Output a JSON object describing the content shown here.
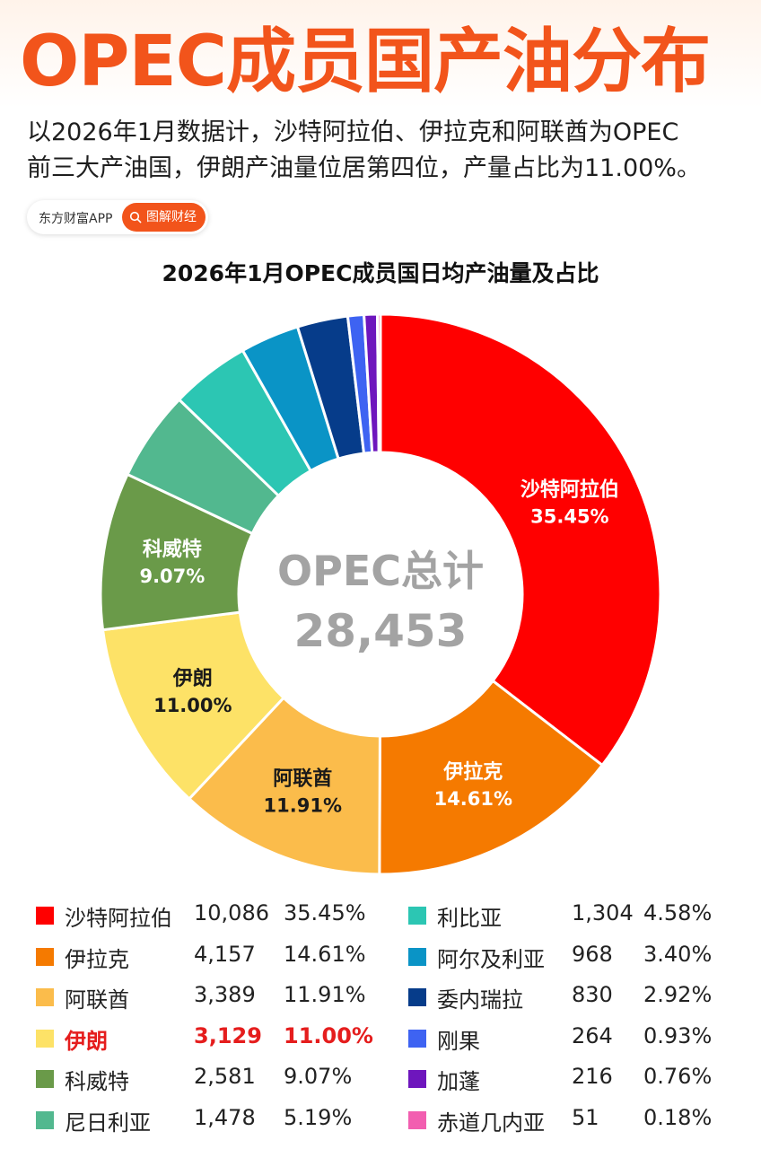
{
  "header": {
    "title": "OPEC成员国产油分布",
    "intro_line1": "以2026年1月数据计，沙特阿拉伯、伊拉克和阿联酋为OPEC",
    "intro_line2": "前三大产油国，伊朗产油量位居第四位，产量占比为11.00%。",
    "source_app": "东方财富APP",
    "source_brand": "图解财经",
    "accent_color": "#f2541b"
  },
  "chart_data": {
    "type": "pie",
    "title": "2026年1月OPEC成员国日均产油量及占比",
    "center_label": "OPEC总计",
    "center_value": "28,453",
    "highlight": "伊朗",
    "slices": [
      {
        "name": "沙特阿拉伯",
        "value": "10,086",
        "percent": "35.45%",
        "pct": 35.45,
        "color": "#ff0000",
        "labeled": true,
        "label_color": "#ffffff"
      },
      {
        "name": "伊拉克",
        "value": "4,157",
        "percent": "14.61%",
        "pct": 14.61,
        "color": "#f57a00",
        "labeled": true,
        "label_color": "#ffffff"
      },
      {
        "name": "阿联酋",
        "value": "3,389",
        "percent": "11.91%",
        "pct": 11.91,
        "color": "#fbbc4b",
        "labeled": true,
        "label_color": "#1a1a1a"
      },
      {
        "name": "伊朗",
        "value": "3,129",
        "percent": "11.00%",
        "pct": 11.0,
        "color": "#fde267",
        "labeled": true,
        "label_color": "#1a1a1a"
      },
      {
        "name": "科威特",
        "value": "2,581",
        "percent": "9.07%",
        "pct": 9.07,
        "color": "#6a9a49",
        "labeled": true,
        "label_color": "#ffffff"
      },
      {
        "name": "尼日利亚",
        "value": "1,478",
        "percent": "5.19%",
        "pct": 5.19,
        "color": "#52b88f",
        "labeled": false
      },
      {
        "name": "利比亚",
        "value": "1,304",
        "percent": "4.58%",
        "pct": 4.58,
        "color": "#2cc6b3",
        "labeled": false
      },
      {
        "name": "阿尔及利亚",
        "value": "968",
        "percent": "3.40%",
        "pct": 3.4,
        "color": "#0a94c6",
        "labeled": false
      },
      {
        "name": "委内瑞拉",
        "value": "830",
        "percent": "2.92%",
        "pct": 2.92,
        "color": "#063c8a",
        "labeled": false
      },
      {
        "name": "刚果",
        "value": "264",
        "percent": "0.93%",
        "pct": 0.93,
        "color": "#3e63f2",
        "labeled": false
      },
      {
        "name": "加蓬",
        "value": "216",
        "percent": "0.76%",
        "pct": 0.76,
        "color": "#6e16bd",
        "labeled": false
      },
      {
        "name": "赤道几内亚",
        "value": "51",
        "percent": "0.18%",
        "pct": 0.18,
        "color": "#f25eb0",
        "labeled": false
      }
    ]
  }
}
